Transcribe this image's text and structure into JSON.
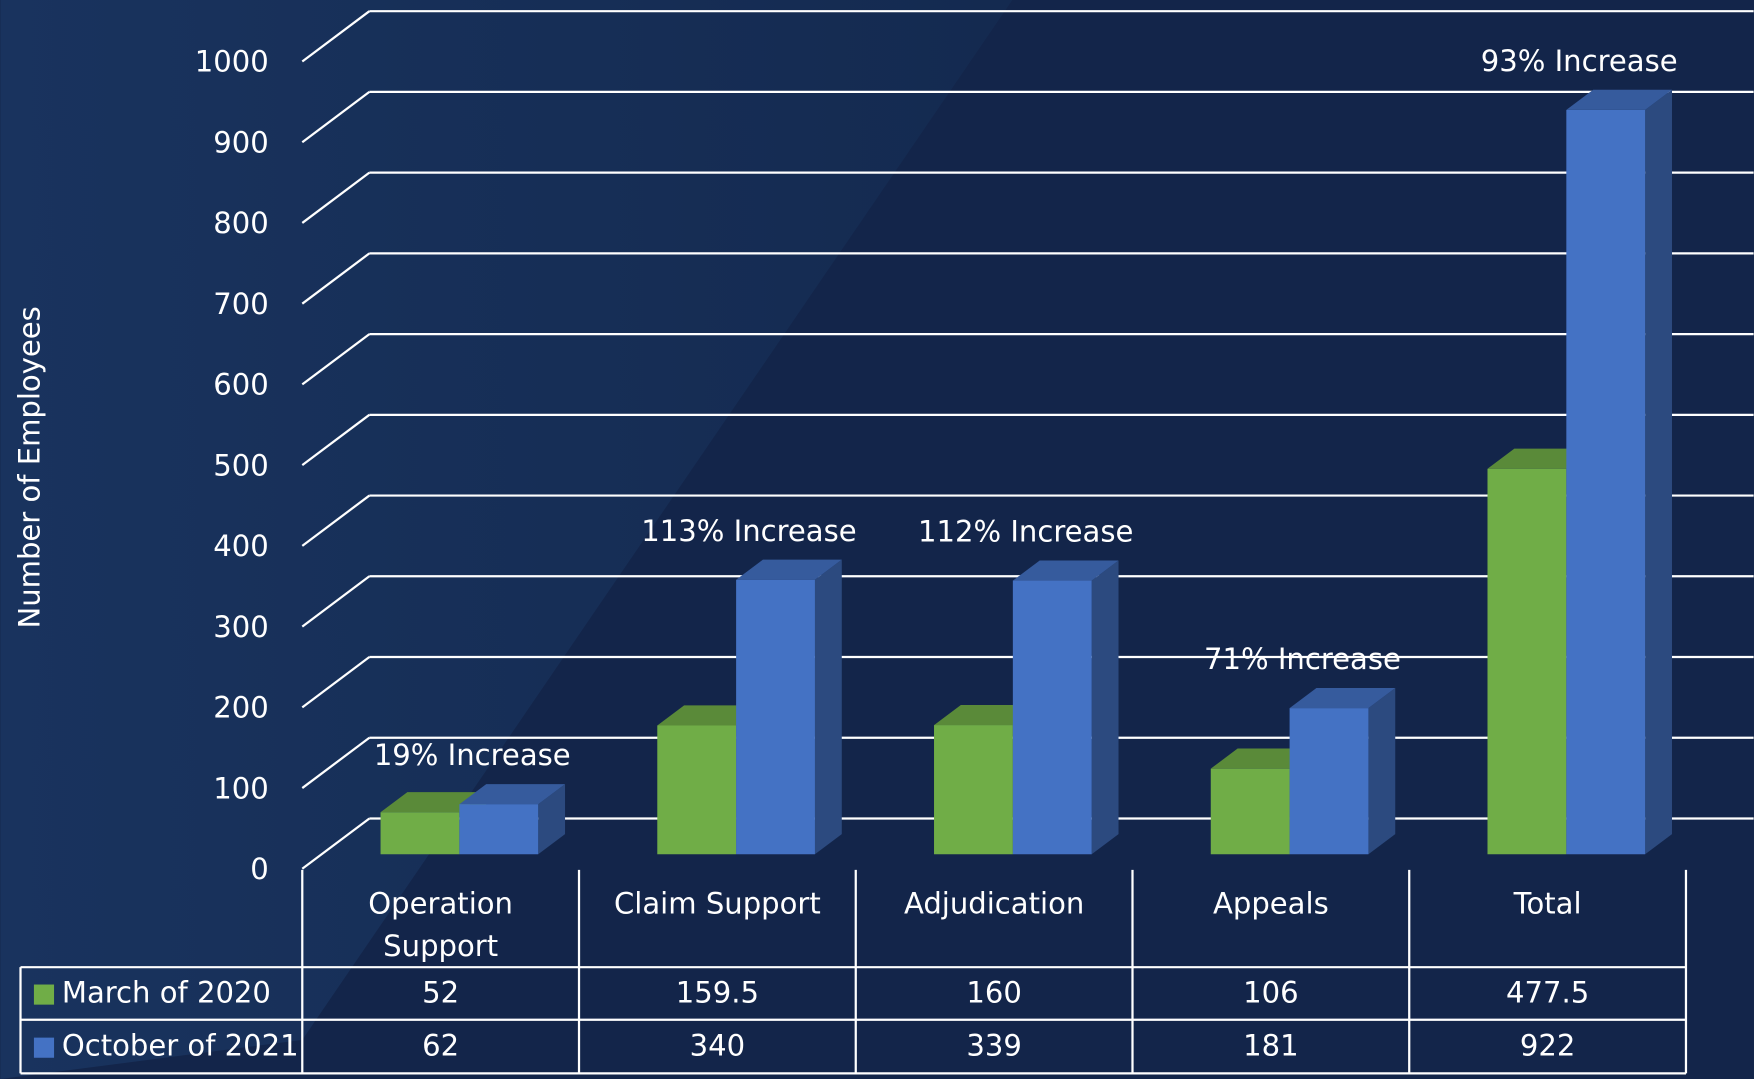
{
  "chart_data": {
    "type": "bar3d",
    "y_label": "Number of Employees",
    "categories": [
      "Operation Support",
      "Claim Support",
      "Adjudication",
      "Appeals",
      "Total"
    ],
    "series": [
      {
        "name": "March of 2020",
        "color": "#70ad47",
        "values": [
          52,
          159.5,
          160,
          106,
          477.5
        ]
      },
      {
        "name": "October of 2021",
        "color": "#4472c4",
        "values": [
          62,
          340,
          339,
          181,
          922
        ]
      }
    ],
    "annotations": [
      {
        "category": "Operation Support",
        "text": "19% Increase"
      },
      {
        "category": "Claim Support",
        "text": "113% Increase"
      },
      {
        "category": "Adjudication",
        "text": "112% Increase"
      },
      {
        "category": "Appeals",
        "text": "71% Increase"
      },
      {
        "category": "Total",
        "text": "93% Increase"
      }
    ],
    "ylim": [
      0,
      1000
    ],
    "yticks": [
      0,
      100,
      200,
      300,
      400,
      500,
      600,
      700,
      800,
      900,
      1000
    ],
    "grid": true,
    "data_table": true
  }
}
